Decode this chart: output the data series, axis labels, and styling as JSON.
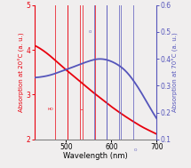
{
  "xlim": [
    430,
    700
  ],
  "ylim_left": [
    2,
    5
  ],
  "ylim_right": [
    0.1,
    0.6
  ],
  "yticks_left": [
    2,
    3,
    4,
    5
  ],
  "yticks_right": [
    0.1,
    0.2,
    0.3,
    0.4,
    0.5,
    0.6
  ],
  "xlabel": "Wavelength (nm)",
  "ylabel_left": "Absorption at 20°C (a. u.)",
  "ylabel_right": "Absorption at 70°C (a. u.)",
  "xticks": [
    500,
    600,
    700
  ],
  "red_color": "#e8000d",
  "blue_color": "#5555bb",
  "bg_color": "#f0eeee",
  "figsize": [
    2.15,
    1.89
  ],
  "dpi": 100,
  "red_x": [
    430,
    450,
    470,
    490,
    510,
    530,
    550,
    570,
    590,
    610,
    630,
    650,
    670,
    690,
    700
  ],
  "red_y": [
    4.1,
    3.98,
    3.82,
    3.64,
    3.47,
    3.3,
    3.13,
    2.97,
    2.81,
    2.66,
    2.52,
    2.39,
    2.27,
    2.17,
    2.12
  ],
  "blue_x": [
    430,
    450,
    470,
    490,
    510,
    530,
    550,
    570,
    590,
    610,
    630,
    650,
    670,
    690,
    700
  ],
  "blue_y": [
    0.33,
    0.334,
    0.342,
    0.354,
    0.366,
    0.379,
    0.391,
    0.399,
    0.396,
    0.382,
    0.357,
    0.316,
    0.263,
    0.205,
    0.178
  ]
}
